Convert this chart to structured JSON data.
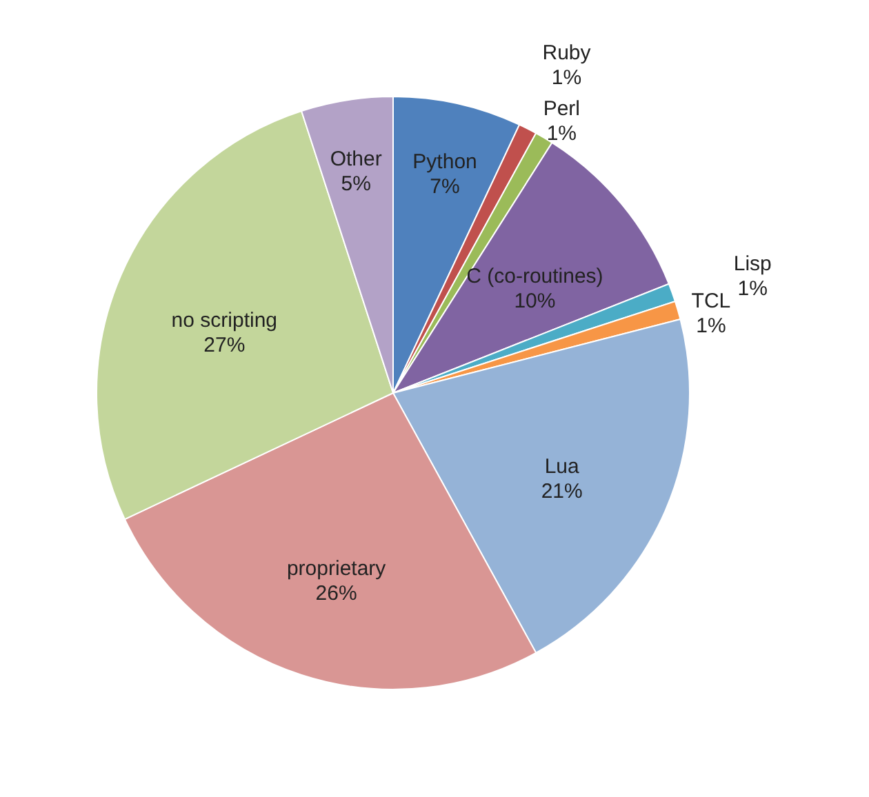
{
  "chart_data": {
    "type": "pie",
    "categories": [
      "Python",
      "Ruby",
      "Perl",
      "C (co-routines)",
      "Lisp",
      "TCL",
      "Lua",
      "proprietary",
      "no scripting",
      "Other"
    ],
    "values": [
      7,
      1,
      1,
      10,
      1,
      1,
      21,
      26,
      27,
      5
    ],
    "value_labels": [
      "7%",
      "1%",
      "1%",
      "10%",
      "1%",
      "1%",
      "21%",
      "26%",
      "27%",
      "5%"
    ],
    "colors": [
      "#4f81bd",
      "#c0504d",
      "#9bbb59",
      "#8064a2",
      "#4bacc6",
      "#f79646",
      "#95b3d7",
      "#d99694",
      "#c3d69b",
      "#b3a2c7"
    ],
    "legend": false
  }
}
